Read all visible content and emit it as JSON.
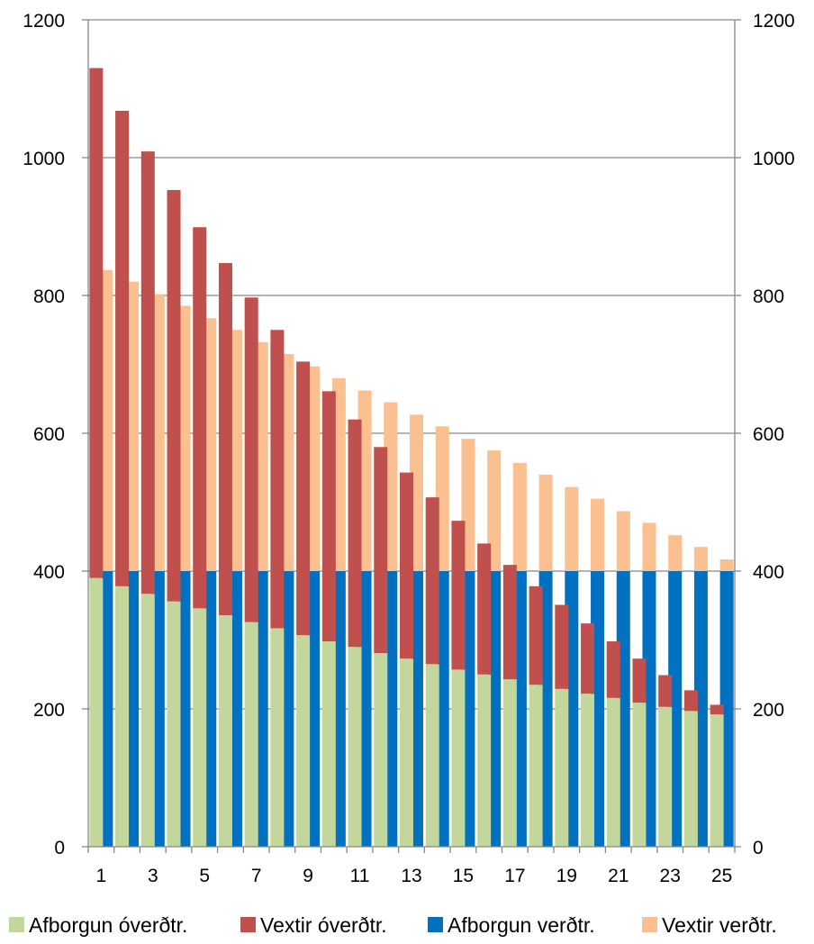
{
  "chart_data": {
    "type": "bar",
    "stacking": "two overlapping stacked columns per category",
    "categories": [
      "1",
      "2",
      "3",
      "4",
      "5",
      "6",
      "7",
      "8",
      "9",
      "10",
      "11",
      "12",
      "13",
      "14",
      "15",
      "16",
      "17",
      "18",
      "19",
      "20",
      "21",
      "22",
      "23",
      "24",
      "25"
    ],
    "x_tick_labels": [
      "1",
      "3",
      "5",
      "7",
      "9",
      "11",
      "13",
      "15",
      "17",
      "19",
      "21",
      "23",
      "25"
    ],
    "ylim": [
      0,
      1200
    ],
    "y_ticks": [
      "0",
      "200",
      "400",
      "600",
      "800",
      "1000",
      "1200"
    ],
    "secondary_y_ticks": [
      "0",
      "200",
      "400",
      "600",
      "800",
      "1000",
      "1200"
    ],
    "gridlines": true,
    "legend_position": "bottom",
    "series": [
      {
        "name": "Afborgun óverðtr.",
        "color": "#c3d69b",
        "stack": "overdtr",
        "values": [
          390,
          378,
          367,
          356,
          346,
          336,
          326,
          317,
          307,
          298,
          290,
          281,
          273,
          265,
          257,
          250,
          243,
          235,
          229,
          222,
          216,
          209,
          203,
          197,
          192
        ]
      },
      {
        "name": "Vextir óverðtr.",
        "color": "#c0504d",
        "stack": "overdtr",
        "values": [
          740,
          690,
          642,
          597,
          553,
          511,
          471,
          433,
          397,
          363,
          330,
          299,
          270,
          242,
          216,
          190,
          166,
          143,
          122,
          102,
          82,
          64,
          46,
          30,
          14
        ]
      },
      {
        "name": "Afborgun verðtr.",
        "color": "#0070c0",
        "stack": "verdtr",
        "values": [
          400,
          400,
          400,
          400,
          400,
          400,
          400,
          400,
          400,
          400,
          400,
          400,
          400,
          400,
          400,
          400,
          400,
          400,
          400,
          400,
          400,
          400,
          400,
          400,
          400
        ]
      },
      {
        "name": "Vextir verðtr.",
        "color": "#fac090",
        "stack": "verdtr",
        "values": [
          437,
          420,
          402,
          385,
          367,
          350,
          332,
          315,
          297,
          280,
          262,
          245,
          227,
          210,
          192,
          175,
          157,
          140,
          122,
          105,
          87,
          70,
          52,
          35,
          17
        ]
      }
    ]
  }
}
